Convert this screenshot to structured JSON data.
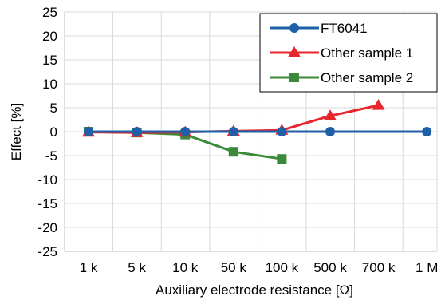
{
  "chart_data": {
    "type": "line",
    "title": "",
    "xlabel": "Auxiliary electrode resistance [Ω]",
    "ylabel": "Effect [%]",
    "ylim": [
      -25,
      25
    ],
    "y_ticks": [
      "25",
      "20",
      "15",
      "10",
      "5",
      "0",
      "-5",
      "-10",
      "-15",
      "-20",
      "-25"
    ],
    "y_tick_values": [
      25,
      20,
      15,
      10,
      5,
      0,
      -5,
      -10,
      -15,
      -20,
      -25
    ],
    "categories": [
      "1 k",
      "5  k",
      "10 k",
      "50 k",
      "100 k",
      "500 k",
      "700 k",
      "1 M"
    ],
    "grid": true,
    "legend_position": "top-right",
    "series": [
      {
        "name": "FT6041",
        "color": "#1f5fa8",
        "marker": "circle",
        "values": [
          0,
          0,
          0,
          0,
          0,
          0,
          null,
          0
        ]
      },
      {
        "name": "Other sample 1",
        "color": "#e8262d",
        "marker": "triangle",
        "values": [
          -0.1,
          -0.2,
          -0.1,
          0.1,
          0.3,
          3.3,
          5.5,
          null
        ]
      },
      {
        "name": "Other sample 2",
        "color": "#3a8a3a",
        "marker": "square",
        "values": [
          0,
          -0.2,
          -0.6,
          -4.2,
          -5.7,
          null,
          null,
          null
        ]
      }
    ]
  }
}
